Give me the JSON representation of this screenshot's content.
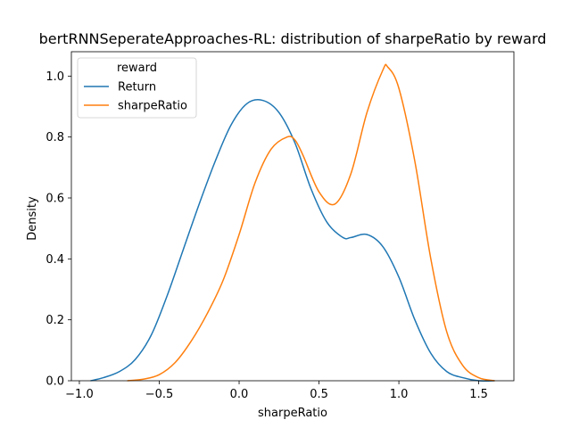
{
  "chart_data": {
    "type": "line",
    "title": "bertRNNSeperateApproaches-RL: distribution of sharpeRatio by reward",
    "xlabel": "sharpeRatio",
    "ylabel": "Density",
    "xlim": [
      -1.05,
      1.72
    ],
    "ylim": [
      0,
      1.08
    ],
    "xticks": [
      -1.0,
      -0.5,
      0.0,
      0.5,
      1.0,
      1.5
    ],
    "xtick_labels": [
      "−1.0",
      "−0.5",
      "0.0",
      "0.5",
      "1.0",
      "1.5"
    ],
    "yticks": [
      0.0,
      0.2,
      0.4,
      0.6,
      0.8,
      1.0
    ],
    "ytick_labels": [
      "0.0",
      "0.2",
      "0.4",
      "0.6",
      "0.8",
      "1.0"
    ],
    "grid": false,
    "legend": {
      "title": "reward",
      "position": "upper-left"
    },
    "series": [
      {
        "name": "Return",
        "color": "#1f77b4",
        "x": [
          -0.93,
          -0.85,
          -0.75,
          -0.65,
          -0.55,
          -0.45,
          -0.35,
          -0.25,
          -0.15,
          -0.05,
          0.05,
          0.15,
          0.25,
          0.35,
          0.45,
          0.55,
          0.65,
          0.7,
          0.8,
          0.9,
          1.0,
          1.1,
          1.2,
          1.3,
          1.4,
          1.5,
          1.6
        ],
        "y": [
          0.0,
          0.01,
          0.03,
          0.07,
          0.15,
          0.28,
          0.43,
          0.58,
          0.72,
          0.84,
          0.91,
          0.92,
          0.88,
          0.78,
          0.63,
          0.52,
          0.47,
          0.47,
          0.48,
          0.44,
          0.34,
          0.2,
          0.09,
          0.03,
          0.01,
          0.0,
          0.0
        ]
      },
      {
        "name": "sharpeRatio",
        "color": "#ff7f0e",
        "x": [
          -0.7,
          -0.6,
          -0.5,
          -0.4,
          -0.3,
          -0.2,
          -0.1,
          0.0,
          0.1,
          0.2,
          0.3,
          0.35,
          0.4,
          0.5,
          0.6,
          0.7,
          0.8,
          0.9,
          0.93,
          1.0,
          1.1,
          1.2,
          1.3,
          1.4,
          1.5,
          1.6
        ],
        "y": [
          0.0,
          0.005,
          0.02,
          0.06,
          0.13,
          0.22,
          0.33,
          0.48,
          0.65,
          0.76,
          0.8,
          0.79,
          0.74,
          0.62,
          0.58,
          0.68,
          0.88,
          1.02,
          1.03,
          0.96,
          0.72,
          0.4,
          0.16,
          0.05,
          0.01,
          0.0
        ]
      }
    ]
  }
}
